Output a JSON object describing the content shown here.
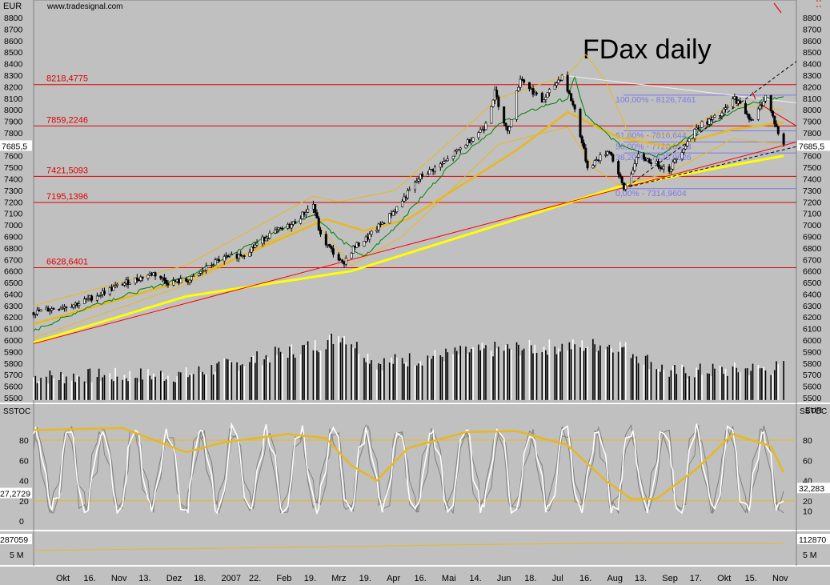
{
  "header": {
    "currency_left": "EUR",
    "currency_right": "EUR",
    "site": "www.tradesignal.com",
    "corner_glyph": "⁚⁚"
  },
  "title": "FDax daily",
  "colors": {
    "background": "#c0c0c0",
    "resistance_line": "#e00000",
    "sma_long": "#ffff00",
    "sma_mid": "#e8b820",
    "envelope": "#e8b820",
    "short_ma": "#008000",
    "fib_line": "#7a7ae8",
    "stoch_fast": "#ffffff",
    "stoch_slow": "#808080",
    "stoch_signal": "#e8b820",
    "trend_red": "#ff0000",
    "trend_white": "#f0f0f0",
    "trend_black": "#000000"
  },
  "chart_data": [
    {
      "type": "candlestick",
      "panel": "price",
      "title": "FDax daily",
      "ylim": [
        5450,
        8900
      ],
      "price_ticks": [
        8800,
        8700,
        8600,
        8500,
        8400,
        8300,
        8200,
        8100,
        8000,
        7900,
        7800,
        7700,
        7600,
        7500,
        7400,
        7300,
        7200,
        7100,
        7000,
        6900,
        6800,
        6700,
        6600,
        6500,
        6400,
        6300,
        6200,
        6100,
        6000
      ],
      "volume_ticks": [
        5900,
        5800,
        5700,
        5600,
        5500
      ],
      "x_ticks": [
        "Okt",
        "16.",
        "Nov",
        "13.",
        "Dez",
        "18.",
        "2007",
        "22.",
        "Feb",
        "19.",
        "Mrz",
        "19.",
        "Apr",
        "16.",
        "Mai",
        "14.",
        "Jun",
        "18.",
        "Jul",
        "16.",
        "Aug",
        "13.",
        "Sep",
        "17.",
        "Okt",
        "15.",
        "Nov"
      ],
      "last_value_label": "7685,5",
      "horizontal_levels": [
        {
          "label": "8218,4775",
          "value": 8218.4775
        },
        {
          "label": "7859,2246",
          "value": 7859.2246
        },
        {
          "label": "7421,5093",
          "value": 7421.5093
        },
        {
          "label": "7195,1396",
          "value": 7195.1396
        },
        {
          "label": "6628,6401",
          "value": 6628.6401
        }
      ],
      "fibonacci": [
        {
          "label": "100,00% - 8126,7461",
          "value": 8126.7461
        },
        {
          "label": "61,80% - 7816,644",
          "value": 7816.644
        },
        {
          "label": "50,00% - 7720,8533",
          "value": 7720.8533
        },
        {
          "label": "38,20% - 7625,0626",
          "value": 7625.0626
        },
        {
          "label": "0,00% - 7314,9604",
          "value": 7314.9604
        }
      ],
      "close_anchors": [
        [
          "2006-09-25",
          6240
        ],
        [
          "2006-10-20",
          6320
        ],
        [
          "2006-11-13",
          6490
        ],
        [
          "2006-11-30",
          6580
        ],
        [
          "2006-12-08",
          6500
        ],
        [
          "2006-12-20",
          6520
        ],
        [
          "2007-01-05",
          6700
        ],
        [
          "2007-01-19",
          6750
        ],
        [
          "2007-02-01",
          6910
        ],
        [
          "2007-02-14",
          7000
        ],
        [
          "2007-02-26",
          7180
        ],
        [
          "2007-03-02",
          6900
        ],
        [
          "2007-03-14",
          6660
        ],
        [
          "2007-03-20",
          6800
        ],
        [
          "2007-03-28",
          6890
        ],
        [
          "2007-04-12",
          7130
        ],
        [
          "2007-04-26",
          7420
        ],
        [
          "2007-05-10",
          7550
        ],
        [
          "2007-05-31",
          7850
        ],
        [
          "2007-06-06",
          8150
        ],
        [
          "2007-06-13",
          7800
        ],
        [
          "2007-06-20",
          8280
        ],
        [
          "2007-07-02",
          8070
        ],
        [
          "2007-07-13",
          8300
        ],
        [
          "2007-07-20",
          8000
        ],
        [
          "2007-07-27",
          7500
        ],
        [
          "2007-08-08",
          7650
        ],
        [
          "2007-08-16",
          7310
        ],
        [
          "2007-08-24",
          7600
        ],
        [
          "2007-09-10",
          7480
        ],
        [
          "2007-09-25",
          7850
        ],
        [
          "2007-10-08",
          7950
        ],
        [
          "2007-10-16",
          8100
        ],
        [
          "2007-10-26",
          7900
        ],
        [
          "2007-11-02",
          8120
        ],
        [
          "2007-11-09",
          7800
        ],
        [
          "2007-11-12",
          7685.5
        ]
      ],
      "sma_200_anchors": [
        [
          "2006-09-25",
          5980
        ],
        [
          "2006-12-18",
          6380
        ],
        [
          "2007-03-19",
          6600
        ],
        [
          "2007-06-18",
          7050
        ],
        [
          "2007-08-13",
          7330
        ],
        [
          "2007-10-15",
          7520
        ],
        [
          "2007-11-12",
          7600
        ]
      ],
      "sma_mid_anchors": [
        [
          "2006-09-25",
          6140
        ],
        [
          "2006-12-18",
          6520
        ],
        [
          "2007-03-05",
          7050
        ],
        [
          "2007-03-26",
          6950
        ],
        [
          "2007-04-19",
          7050
        ],
        [
          "2007-06-18",
          7650
        ],
        [
          "2007-07-16",
          7980
        ],
        [
          "2007-08-13",
          7760
        ],
        [
          "2007-09-10",
          7680
        ],
        [
          "2007-10-15",
          7830
        ],
        [
          "2007-11-12",
          7890
        ]
      ],
      "ma_short_anchors": [
        [
          "2006-09-25",
          6080
        ],
        [
          "2006-10-27",
          6300
        ],
        [
          "2006-12-18",
          6550
        ],
        [
          "2007-02-26",
          7100
        ],
        [
          "2007-03-12",
          6880
        ],
        [
          "2007-03-26",
          6720
        ],
        [
          "2007-04-12",
          6980
        ],
        [
          "2007-05-14",
          7550
        ],
        [
          "2007-06-11",
          7900
        ],
        [
          "2007-07-06",
          8050
        ],
        [
          "2007-07-16",
          8100
        ],
        [
          "2007-07-20",
          8280
        ],
        [
          "2007-07-26",
          7950
        ],
        [
          "2007-08-13",
          7700
        ],
        [
          "2007-09-03",
          7600
        ],
        [
          "2007-09-25",
          7800
        ],
        [
          "2007-10-15",
          7980
        ],
        [
          "2007-11-02",
          8100
        ],
        [
          "2007-11-12",
          8100
        ]
      ],
      "envelope_upper_anchors": [
        [
          "2006-09-25",
          6300
        ],
        [
          "2006-12-18",
          6650
        ],
        [
          "2007-02-26",
          7250
        ],
        [
          "2007-03-12",
          7200
        ],
        [
          "2007-04-12",
          7300
        ],
        [
          "2007-06-08",
          8100
        ],
        [
          "2007-07-16",
          8300
        ],
        [
          "2007-07-26",
          8480
        ],
        [
          "2007-08-06",
          8250
        ],
        [
          "2007-08-20",
          7750
        ],
        [
          "2007-09-17",
          7800
        ],
        [
          "2007-10-15",
          8050
        ],
        [
          "2007-11-12",
          8000
        ]
      ],
      "envelope_lower_anchors": [
        [
          "2006-09-25",
          6020
        ],
        [
          "2006-12-18",
          6480
        ],
        [
          "2007-02-26",
          7050
        ],
        [
          "2007-03-19",
          6650
        ],
        [
          "2007-04-16",
          6900
        ],
        [
          "2007-06-08",
          7700
        ],
        [
          "2007-07-16",
          7850
        ],
        [
          "2007-07-30",
          7500
        ],
        [
          "2007-08-13",
          7350
        ],
        [
          "2007-09-10",
          7450
        ],
        [
          "2007-10-15",
          7750
        ],
        [
          "2007-11-12",
          7700
        ]
      ],
      "volume_anchors": [
        [
          "2006-09-25",
          5680
        ],
        [
          "2006-12-18",
          5700
        ],
        [
          "2007-03-01",
          5960
        ],
        [
          "2007-03-14",
          6050
        ],
        [
          "2007-04-02",
          5800
        ],
        [
          "2007-06-06",
          5920
        ],
        [
          "2007-07-20",
          5950
        ],
        [
          "2007-08-13",
          5960
        ],
        [
          "2007-09-10",
          5720
        ],
        [
          "2007-11-12",
          5760
        ]
      ],
      "trendlines": [
        {
          "color": "#ff0000",
          "from": [
            "2006-09-25",
            5970
          ],
          "to": [
            "2007-11-19",
            7720
          ]
        },
        {
          "color": "#f0f0f0",
          "from": [
            "2007-07-13",
            8300
          ],
          "to": [
            "2007-11-19",
            8060
          ]
        },
        {
          "color": "#000000",
          "dashed": true,
          "from": [
            "2007-08-16",
            7310
          ],
          "to": [
            "2007-11-19",
            8420
          ]
        },
        {
          "color": "#000000",
          "dashed": true,
          "from": [
            "2007-08-16",
            7320
          ],
          "to": [
            "2007-11-19",
            7680
          ]
        },
        {
          "color": "#e00000",
          "from": [
            "2007-10-30",
            8050
          ],
          "to": [
            "2007-11-19",
            7860
          ]
        }
      ]
    },
    {
      "type": "line",
      "panel": "stochastic",
      "title": "SSTOC",
      "ylim": [
        -15,
        112
      ],
      "y_ticks": [
        80,
        60,
        40,
        20,
        0
      ],
      "right_ticks": [
        80,
        60,
        40,
        20,
        10
      ],
      "levels": [
        80,
        20
      ],
      "left_value_label": "27,2729",
      "right_value_label": "32,283",
      "signal_anchors": [
        [
          "2006-09-25",
          90
        ],
        [
          "2006-11-13",
          92
        ],
        [
          "2006-12-18",
          68
        ],
        [
          "2007-01-08",
          78
        ],
        [
          "2007-02-12",
          86
        ],
        [
          "2007-03-05",
          82
        ],
        [
          "2007-03-19",
          55
        ],
        [
          "2007-04-02",
          40
        ],
        [
          "2007-04-19",
          72
        ],
        [
          "2007-05-21",
          88
        ],
        [
          "2007-06-18",
          89
        ],
        [
          "2007-07-16",
          75
        ],
        [
          "2007-08-06",
          40
        ],
        [
          "2007-08-20",
          22
        ],
        [
          "2007-09-03",
          22
        ],
        [
          "2007-09-24",
          50
        ],
        [
          "2007-10-15",
          86
        ],
        [
          "2007-11-05",
          74
        ],
        [
          "2007-11-12",
          48
        ]
      ]
    },
    {
      "type": "line",
      "panel": "volume_average",
      "y_ticks_left": [
        "5 M"
      ],
      "y_ticks_right": [
        "5 M"
      ],
      "left_value_label": "287059",
      "right_value_label": "112870",
      "anchors": [
        [
          "2006-09-25",
          6.3
        ],
        [
          "2007-01-08",
          7.0
        ],
        [
          "2007-06-04",
          8.2
        ],
        [
          "2007-08-13",
          8.6
        ],
        [
          "2007-11-12",
          8.5
        ]
      ]
    }
  ]
}
